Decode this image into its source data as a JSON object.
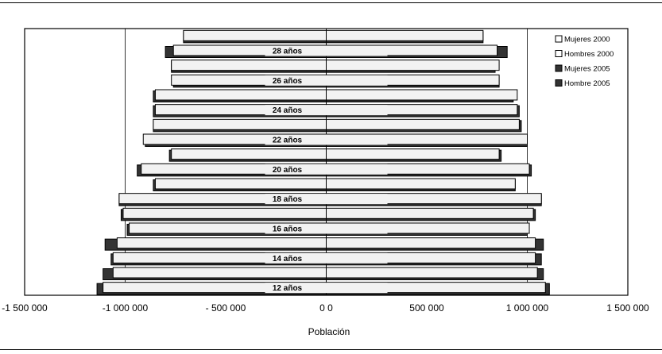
{
  "chart_data": {
    "type": "bar",
    "orientation": "horizontal",
    "xlabel": "Población",
    "xlim": [
      -1500000,
      1500000
    ],
    "xticks": [
      -1500000,
      -1000000,
      -500000,
      0,
      500000,
      1000000,
      1500000
    ],
    "xtick_labels": [
      "-1 500 000",
      "-1 000 000",
      "- 500 000",
      "0 0",
      "500 000",
      "1 000 000",
      "1 500 000"
    ],
    "grid": "vertical at ±1 000 000",
    "legend_position": "top-right",
    "ages": [
      12,
      13,
      14,
      15,
      16,
      17,
      18,
      19,
      20,
      21,
      22,
      23,
      24,
      25,
      26,
      27,
      28,
      29
    ],
    "age_labels": [
      "12 años",
      "",
      "14 años",
      "",
      "16 años",
      "",
      "18 años",
      "",
      "20 años",
      "",
      "22 años",
      "",
      "24 años",
      "",
      "26 años",
      "",
      "28 años",
      ""
    ],
    "series": [
      {
        "name": "Mujeres 2000",
        "color": "#ffffff",
        "values": [
          1090000,
          1050000,
          1040000,
          1040000,
          1010000,
          1030000,
          1070000,
          940000,
          1010000,
          860000,
          1000000,
          960000,
          950000,
          950000,
          860000,
          860000,
          850000,
          780000
        ]
      },
      {
        "name": "Hombres 2000",
        "color": "#ffffff",
        "values": [
          -1110000,
          -1060000,
          -1060000,
          -1040000,
          -980000,
          -1010000,
          -1030000,
          -850000,
          -920000,
          -770000,
          -910000,
          -860000,
          -850000,
          -850000,
          -770000,
          -770000,
          -760000,
          -710000
        ]
      },
      {
        "name": "Mujeres 2005",
        "color": "#333333",
        "values": [
          1110000,
          1080000,
          1070000,
          1080000,
          1000000,
          1040000,
          1070000,
          940000,
          1020000,
          870000,
          1000000,
          970000,
          960000,
          930000,
          860000,
          840000,
          900000,
          780000
        ]
      },
      {
        "name": "Hombre 2005",
        "color": "#333333",
        "values": [
          -1140000,
          -1110000,
          -1070000,
          -1100000,
          -990000,
          -1020000,
          -1030000,
          -860000,
          -940000,
          -780000,
          -900000,
          -860000,
          -860000,
          -860000,
          -760000,
          -770000,
          -800000,
          -710000
        ]
      }
    ]
  }
}
